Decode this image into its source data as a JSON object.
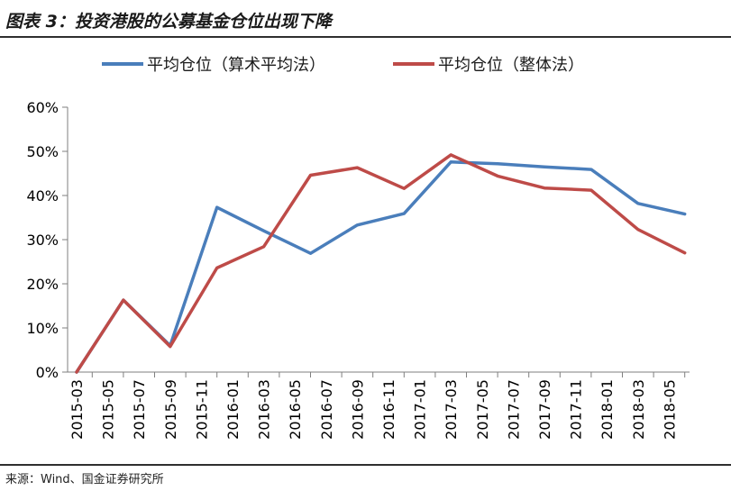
{
  "header": {
    "title": "图表 3：投资港股的公募基金仓位出现下降"
  },
  "footer": {
    "source": "来源：Wind、国金证券研究所"
  },
  "colors": {
    "series_1": "#4a7ebb",
    "series_2": "#be4b48",
    "axis": "#7f7f7f"
  },
  "chart_data": {
    "type": "line",
    "title": "图表 3：投资港股的公募基金仓位出现下降",
    "xlabel": "",
    "ylabel": "",
    "categories": [
      "2015-03",
      "2015-05",
      "2015-07",
      "2015-09",
      "2015-11",
      "2016-01",
      "2016-03",
      "2016-05",
      "2016-07",
      "2016-09",
      "2016-11",
      "2017-01",
      "2017-03",
      "2017-05",
      "2017-07",
      "2017-09",
      "2017-11",
      "2018-01",
      "2018-03",
      "2018-05"
    ],
    "x": [
      "2015-03",
      "2015-06",
      "2015-09",
      "2015-12",
      "2016-03",
      "2016-06",
      "2016-09",
      "2016-12",
      "2017-03",
      "2017-06",
      "2017-09",
      "2017-12",
      "2018-03",
      "2018-06"
    ],
    "ylim": [
      0,
      60
    ],
    "yticks": [
      "0%",
      "10%",
      "20%",
      "30%",
      "40%",
      "50%",
      "60%"
    ],
    "grid": false,
    "legend_position": "top",
    "series": [
      {
        "name": "平均仓位（算术平均法）",
        "color": "#4a7ebb",
        "values": [
          0,
          16.3,
          6.0,
          37.3,
          32.0,
          26.9,
          33.3,
          35.9,
          47.6,
          47.2,
          46.5,
          45.9,
          38.2,
          35.8
        ]
      },
      {
        "name": "平均仓位（整体法）",
        "color": "#be4b48",
        "values": [
          0,
          16.3,
          5.8,
          23.6,
          28.4,
          44.6,
          46.3,
          41.6,
          49.2,
          44.4,
          41.7,
          41.2,
          32.3,
          27.0
        ]
      }
    ]
  }
}
